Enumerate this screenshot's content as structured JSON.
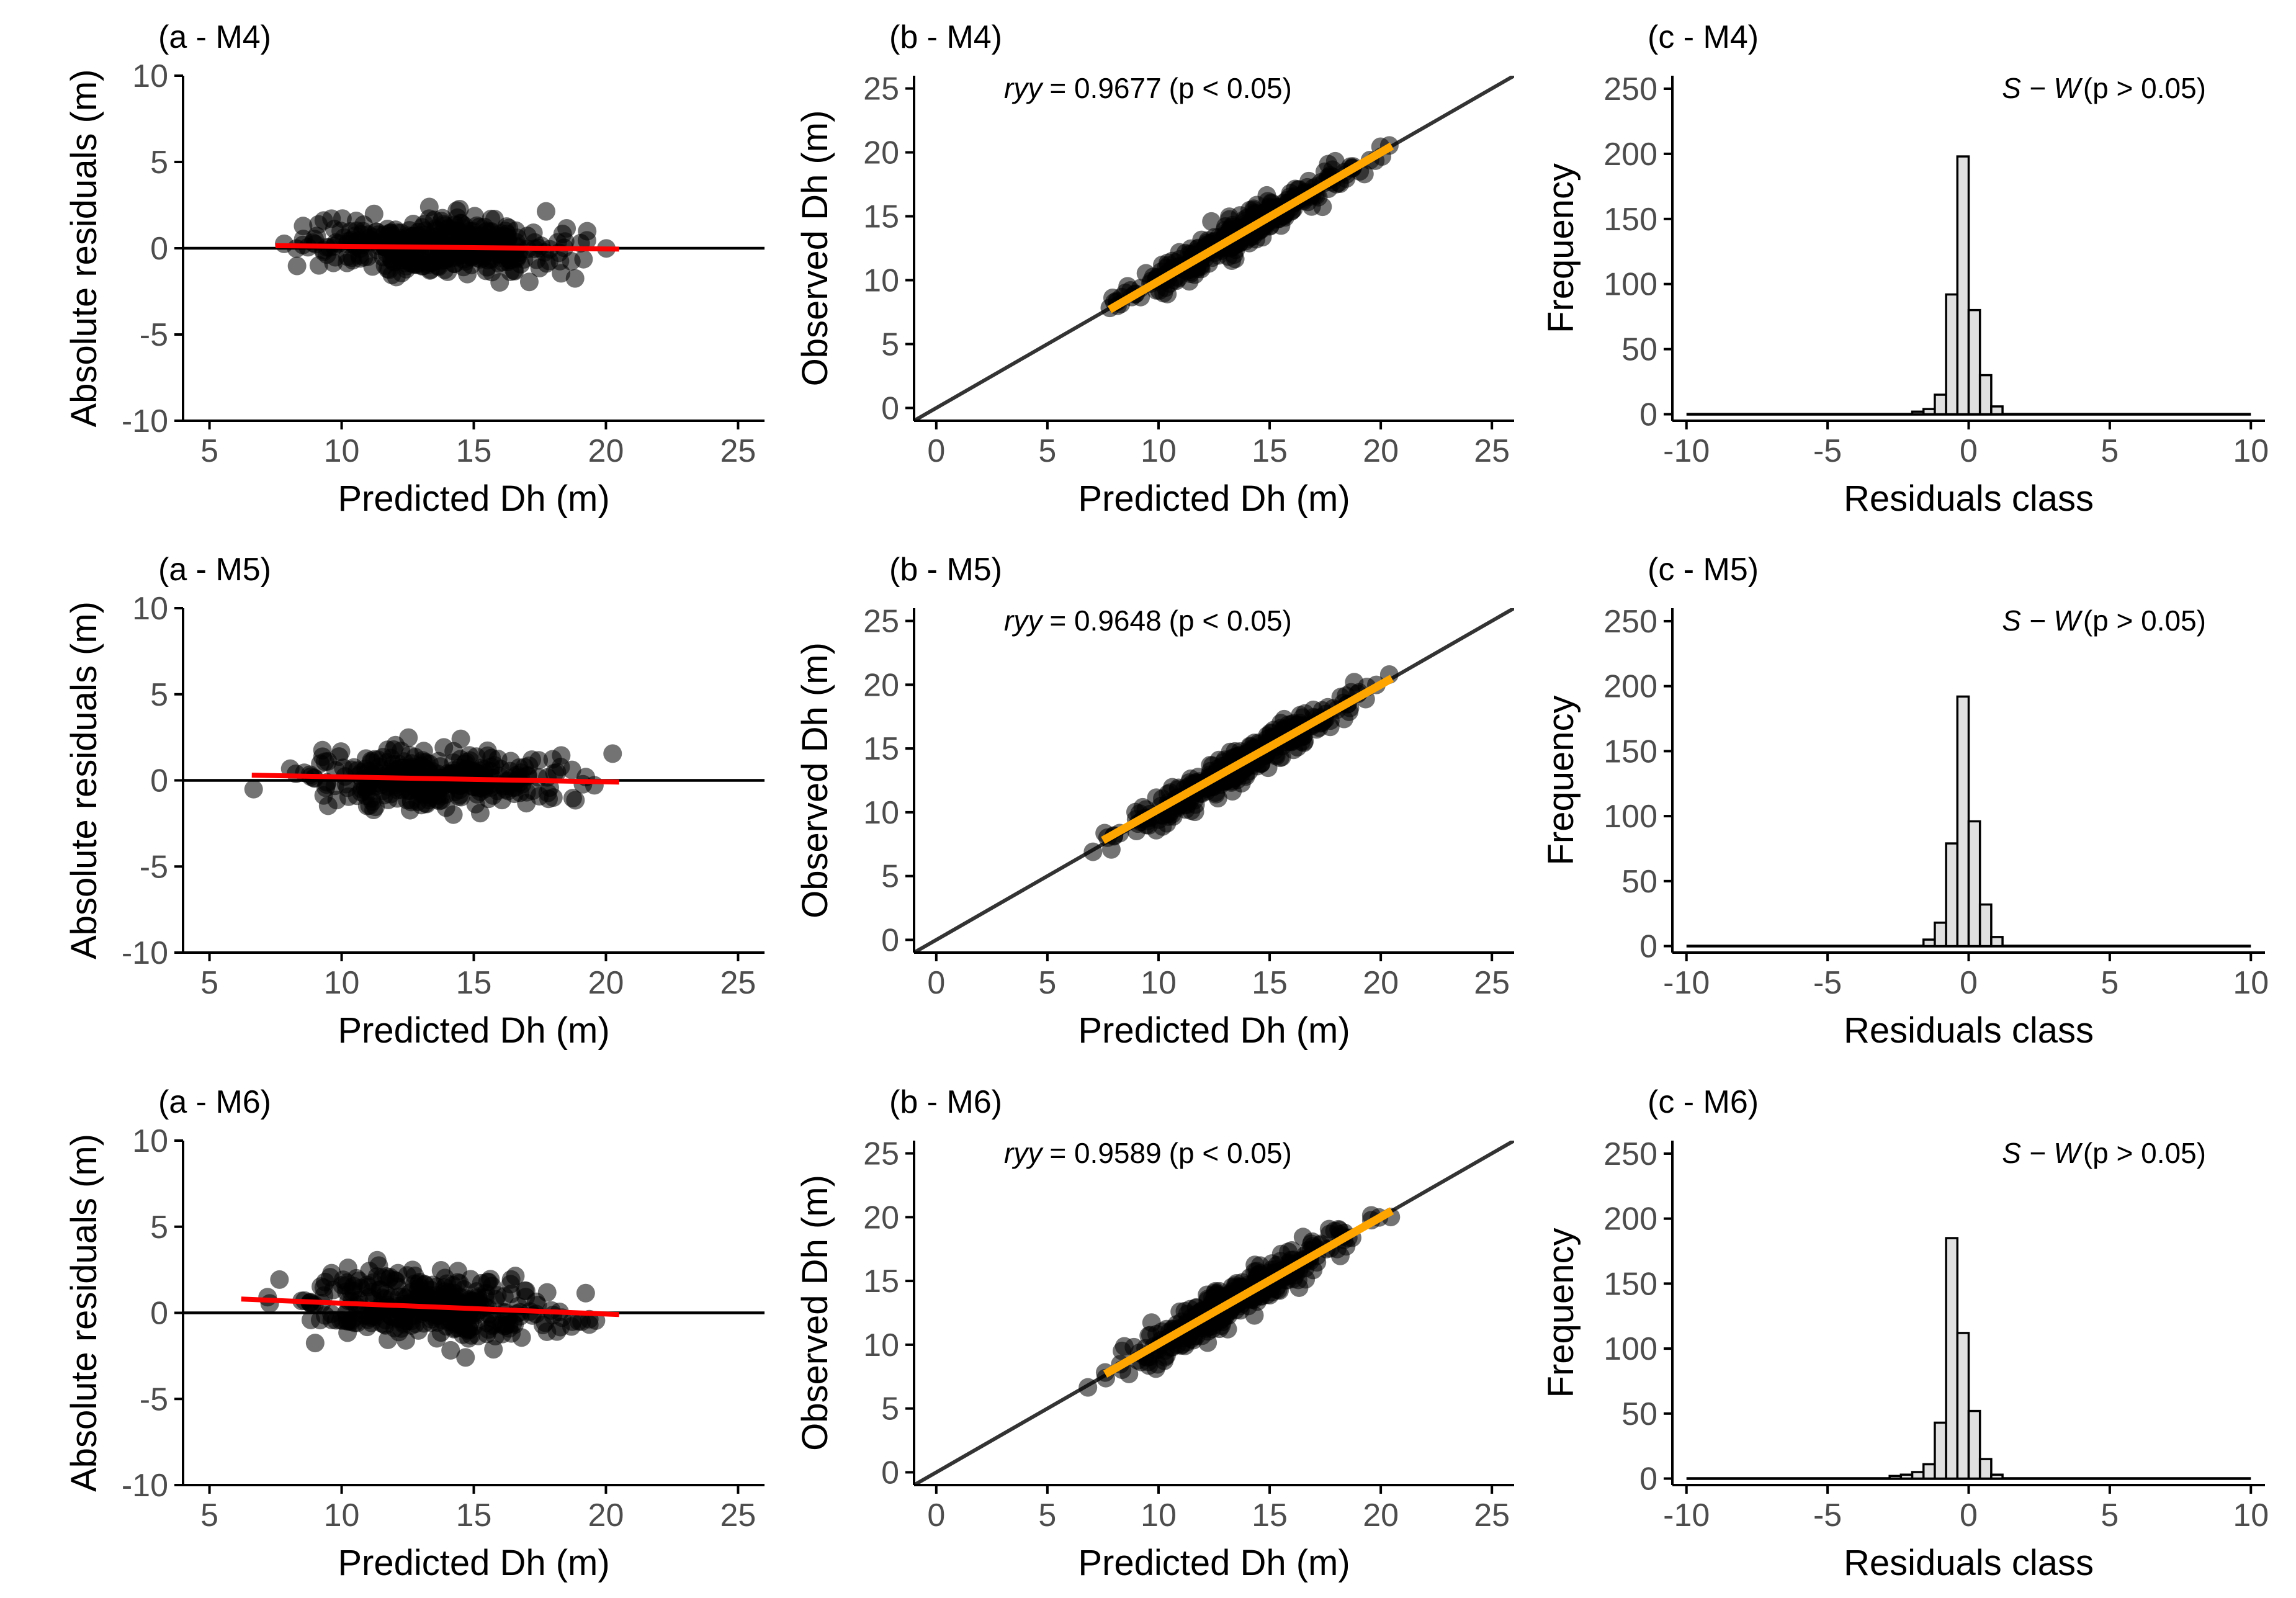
{
  "figure": {
    "description_axis_labels": {
      "residuals_x": "Predicted Dh (m)",
      "residuals_y": "Absolute residuals (m)",
      "observed_x": "Predicted Dh (m)",
      "observed_y": "Observed Dh (m)",
      "hist_x": "Residuals class",
      "hist_y": "Frequency"
    },
    "colors": {
      "points": "#000000",
      "trend_red": "#ff0000",
      "fit_orange": "#ffa500",
      "bar_fill": "#e0e0e0",
      "axis": "#000000",
      "tick_text": "#4d4d4d"
    }
  },
  "chart_data": [
    {
      "type": "scatter",
      "title": "(a - M4)",
      "xlabel": "Predicted Dh (m)",
      "ylabel": "Absolute residuals (m)",
      "xlim": [
        4,
        26
      ],
      "ylim": [
        -10,
        10
      ],
      "xticks": [
        5,
        10,
        15,
        20,
        25
      ],
      "yticks": [
        -10,
        -5,
        0,
        5,
        10
      ],
      "ytick_labels": [
        "-10",
        "-5",
        "0",
        "5",
        "10"
      ],
      "reference_line": {
        "y": 0
      },
      "trend": {
        "x": [
          7.5,
          20.5
        ],
        "y": [
          0.15,
          -0.05
        ]
      },
      "cloud": {
        "x_range": [
          7.5,
          20.5
        ],
        "center_x": 13.5,
        "spread": 0.8,
        "n": 360
      }
    },
    {
      "type": "scatter",
      "title": "(b - M4)",
      "xlabel": "Predicted Dh (m)",
      "ylabel": "Observed Dh (m)",
      "xlim": [
        -1,
        26
      ],
      "ylim": [
        -1,
        26
      ],
      "xticks": [
        0,
        5,
        10,
        15,
        20,
        25
      ],
      "yticks": [
        0,
        5,
        10,
        15,
        20,
        25
      ],
      "identity_line": true,
      "fit": {
        "x": [
          7.8,
          20.5
        ],
        "y": [
          7.7,
          20.5
        ]
      },
      "annotation": {
        "stat": "ryy",
        "value": "= 0.9677",
        "p": "(p < 0.05)"
      },
      "cloud": {
        "x_range": [
          7.6,
          20.5
        ],
        "center_x": 13.5,
        "spread": 0.6,
        "n": 360
      }
    },
    {
      "type": "bar",
      "title": "(c - M4)",
      "xlabel": "Residuals class",
      "ylabel": "Frequency",
      "xlim": [
        -10.5,
        10.5
      ],
      "ylim": [
        -5,
        260
      ],
      "xticks": [
        -10,
        -5,
        0,
        5,
        10
      ],
      "yticks": [
        0,
        50,
        100,
        150,
        200,
        250
      ],
      "xtick_labels": [
        "-10",
        "-5",
        "0",
        "5",
        "10"
      ],
      "bin_edges": [
        -2.8,
        -2.4,
        -2.0,
        -1.6,
        -1.2,
        -0.8,
        -0.4,
        0.0,
        0.4,
        0.8,
        1.2,
        1.6,
        2.0,
        2.4,
        2.8
      ],
      "values": [
        0,
        0,
        2,
        4,
        15,
        92,
        198,
        80,
        30,
        6,
        0,
        0,
        0,
        0
      ],
      "baseline": [
        -10,
        10
      ],
      "annotation": {
        "stat": "S − W",
        "p": "(p > 0.05)"
      }
    },
    {
      "type": "scatter",
      "title": "(a - M5)",
      "xlabel": "Predicted Dh (m)",
      "ylabel": "Absolute residuals (m)",
      "xlim": [
        4,
        26
      ],
      "ylim": [
        -10,
        10
      ],
      "xticks": [
        5,
        10,
        15,
        20,
        25
      ],
      "yticks": [
        -10,
        -5,
        0,
        5,
        10
      ],
      "ytick_labels": [
        "-10",
        "-5",
        "0",
        "5",
        "10"
      ],
      "reference_line": {
        "y": 0
      },
      "trend": {
        "x": [
          6.6,
          20.5
        ],
        "y": [
          0.3,
          -0.1
        ]
      },
      "cloud": {
        "x_range": [
          6.6,
          20.5
        ],
        "center_x": 13.5,
        "spread": 0.8,
        "n": 360
      }
    },
    {
      "type": "scatter",
      "title": "(b - M5)",
      "xlabel": "Predicted Dh (m)",
      "ylabel": "Observed Dh (m)",
      "xlim": [
        -1,
        26
      ],
      "ylim": [
        -1,
        26
      ],
      "xticks": [
        0,
        5,
        10,
        15,
        20,
        25
      ],
      "yticks": [
        0,
        5,
        10,
        15,
        20,
        25
      ],
      "identity_line": true,
      "fit": {
        "x": [
          7.5,
          20.5
        ],
        "y": [
          7.8,
          20.5
        ]
      },
      "annotation": {
        "stat": "ryy",
        "value": "= 0.9648",
        "p": "(p < 0.05)"
      },
      "cloud": {
        "x_range": [
          6.6,
          20.5
        ],
        "center_x": 13.5,
        "spread": 0.65,
        "n": 360
      }
    },
    {
      "type": "bar",
      "title": "(c - M5)",
      "xlabel": "Residuals class",
      "ylabel": "Frequency",
      "xlim": [
        -10.5,
        10.5
      ],
      "ylim": [
        -5,
        260
      ],
      "xticks": [
        -10,
        -5,
        0,
        5,
        10
      ],
      "yticks": [
        0,
        50,
        100,
        150,
        200,
        250
      ],
      "xtick_labels": [
        "-10",
        "-5",
        "0",
        "5",
        "10"
      ],
      "bin_edges": [
        -2.8,
        -2.4,
        -2.0,
        -1.6,
        -1.2,
        -0.8,
        -0.4,
        0.0,
        0.4,
        0.8,
        1.2,
        1.6,
        2.0,
        2.4,
        2.8
      ],
      "values": [
        0,
        0,
        0,
        5,
        18,
        79,
        192,
        96,
        32,
        7,
        0,
        0,
        0,
        0
      ],
      "baseline": [
        -10,
        10
      ],
      "annotation": {
        "stat": "S − W",
        "p": "(p > 0.05)"
      }
    },
    {
      "type": "scatter",
      "title": "(a - M6)",
      "xlabel": "Predicted Dh (m)",
      "ylabel": "Absolute residuals (m)",
      "xlim": [
        4,
        26
      ],
      "ylim": [
        -10,
        10
      ],
      "xticks": [
        5,
        10,
        15,
        20,
        25
      ],
      "yticks": [
        -10,
        -5,
        0,
        5,
        10
      ],
      "ytick_labels": [
        "-10",
        "-5",
        "0",
        "5",
        "10"
      ],
      "reference_line": {
        "y": 0
      },
      "trend": {
        "x": [
          6.2,
          20.5
        ],
        "y": [
          0.8,
          -0.1
        ]
      },
      "cloud": {
        "x_range": [
          6.2,
          20.5
        ],
        "center_x": 13.5,
        "spread": 0.95,
        "n": 360
      }
    },
    {
      "type": "scatter",
      "title": "(b - M6)",
      "xlabel": "Predicted Dh (m)",
      "ylabel": "Observed Dh (m)",
      "xlim": [
        -1,
        26
      ],
      "ylim": [
        -1,
        26
      ],
      "xticks": [
        0,
        5,
        10,
        15,
        20,
        25
      ],
      "yticks": [
        0,
        5,
        10,
        15,
        20,
        25
      ],
      "identity_line": true,
      "fit": {
        "x": [
          7.6,
          20.5
        ],
        "y": [
          7.7,
          20.5
        ]
      },
      "annotation": {
        "stat": "ryy",
        "value": "= 0.9589",
        "p": "(p < 0.05)"
      },
      "cloud": {
        "x_range": [
          6.6,
          20.5
        ],
        "center_x": 13.5,
        "spread": 0.75,
        "n": 360
      }
    },
    {
      "type": "bar",
      "title": "(c - M6)",
      "xlabel": "Residuals class",
      "ylabel": "Frequency",
      "xlim": [
        -10.5,
        10.5
      ],
      "ylim": [
        -5,
        260
      ],
      "xticks": [
        -10,
        -5,
        0,
        5,
        10
      ],
      "yticks": [
        0,
        50,
        100,
        150,
        200,
        250
      ],
      "xtick_labels": [
        "-10",
        "-5",
        "0",
        "5",
        "10"
      ],
      "bin_edges": [
        -3.6,
        -3.2,
        -2.8,
        -2.4,
        -2.0,
        -1.6,
        -1.2,
        -0.8,
        -0.4,
        0.0,
        0.4,
        0.8,
        1.2,
        1.6,
        2.0,
        2.4,
        2.8,
        3.2
      ],
      "values": [
        0,
        0,
        2,
        3,
        5,
        11,
        43,
        185,
        112,
        52,
        15,
        3,
        0,
        0,
        0,
        0,
        0
      ],
      "baseline": [
        -10,
        10
      ],
      "annotation": {
        "stat": "S − W",
        "p": "(p > 0.05)"
      }
    }
  ]
}
